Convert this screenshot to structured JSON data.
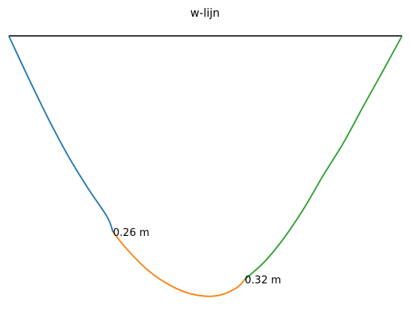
{
  "chart_data": {
    "type": "line",
    "title": "w-lijn",
    "xlabel": "",
    "ylabel": "",
    "grid": false,
    "axes_visible": false,
    "xlim": [
      0,
      10
    ],
    "ylim": [
      -0.355,
      0.0
    ],
    "baseline": {
      "x": [
        0,
        10
      ],
      "y": [
        0,
        0
      ],
      "color": "#000000"
    },
    "series": [
      {
        "color": "#1f77b4",
        "x": [
          0.0,
          0.5,
          1.0,
          1.5,
          2.0,
          2.5,
          2.65
        ],
        "y": [
          0.0,
          -0.0555,
          -0.1088,
          -0.1577,
          -0.2003,
          -0.2391,
          -0.2592
        ]
      },
      {
        "color": "#ff7f0e",
        "x": [
          2.65,
          3.0,
          3.5,
          4.0,
          4.5,
          5.0,
          5.4,
          5.8,
          6.0
        ],
        "y": [
          -0.2592,
          -0.2816,
          -0.308,
          -0.3266,
          -0.3389,
          -0.344,
          -0.3422,
          -0.3327,
          -0.322
        ]
      },
      {
        "color": "#2ca02c",
        "x": [
          6.0,
          6.5,
          7.0,
          7.5,
          8.0,
          8.5,
          9.0,
          9.5,
          10.0
        ],
        "y": [
          -0.322,
          -0.2987,
          -0.2671,
          -0.2285,
          -0.184,
          -0.1423,
          -0.0945,
          -0.0477,
          0.0
        ]
      }
    ],
    "annotations": [
      {
        "x": 2.65,
        "y": -0.2592,
        "text": "0.26 m"
      },
      {
        "x": 6.0,
        "y": -0.322,
        "text": "0.32 m"
      }
    ]
  }
}
